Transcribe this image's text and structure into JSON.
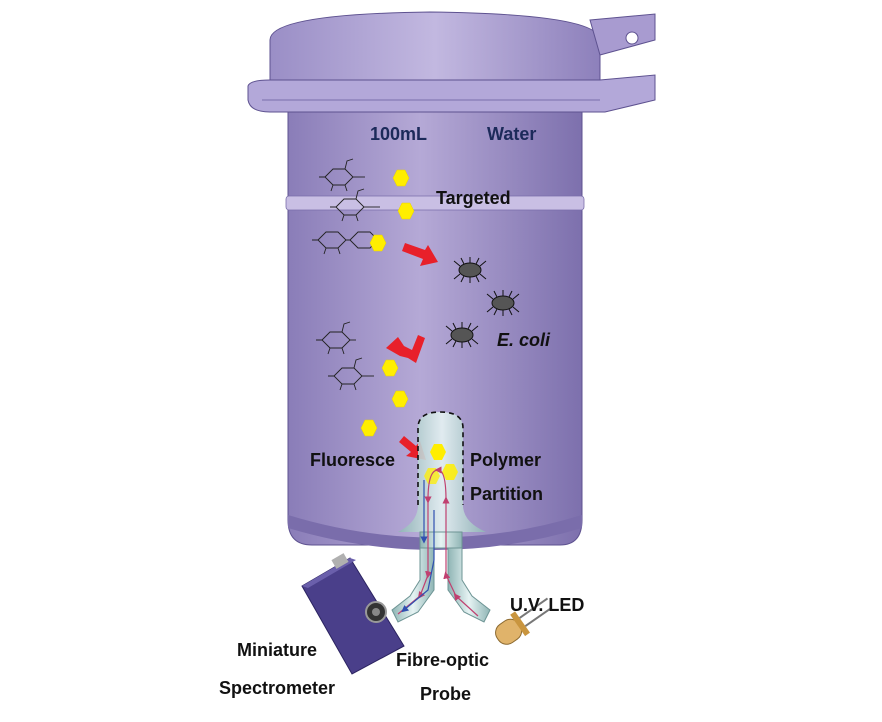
{
  "labels": {
    "volume": "100mL",
    "medium": "Water",
    "targeted": "Targeted",
    "bacteria": "E. coli",
    "fluoresce": "Fluoresce",
    "polymer_line1": "Polymer",
    "polymer_line2": "Partition",
    "led": "U.V. LED",
    "spectro_line1": "Miniature",
    "spectro_line2": "Spectrometer",
    "probe_line1": "Fibre-optic",
    "probe_line2": "Probe"
  },
  "colors": {
    "container": "#a89bcc",
    "container_dark": "#6f63a0",
    "fluorophore": "#ffee00",
    "arrow": "#e8202a",
    "fibre": "#b9d6d6",
    "light_path_blue": "#3050b0",
    "light_path_pink": "#c04070",
    "spectrometer": "#4a3f8a"
  },
  "icons": {
    "molecule": "glucose-ring-icon",
    "bacterium": "bacterium-icon",
    "led": "led-icon"
  }
}
